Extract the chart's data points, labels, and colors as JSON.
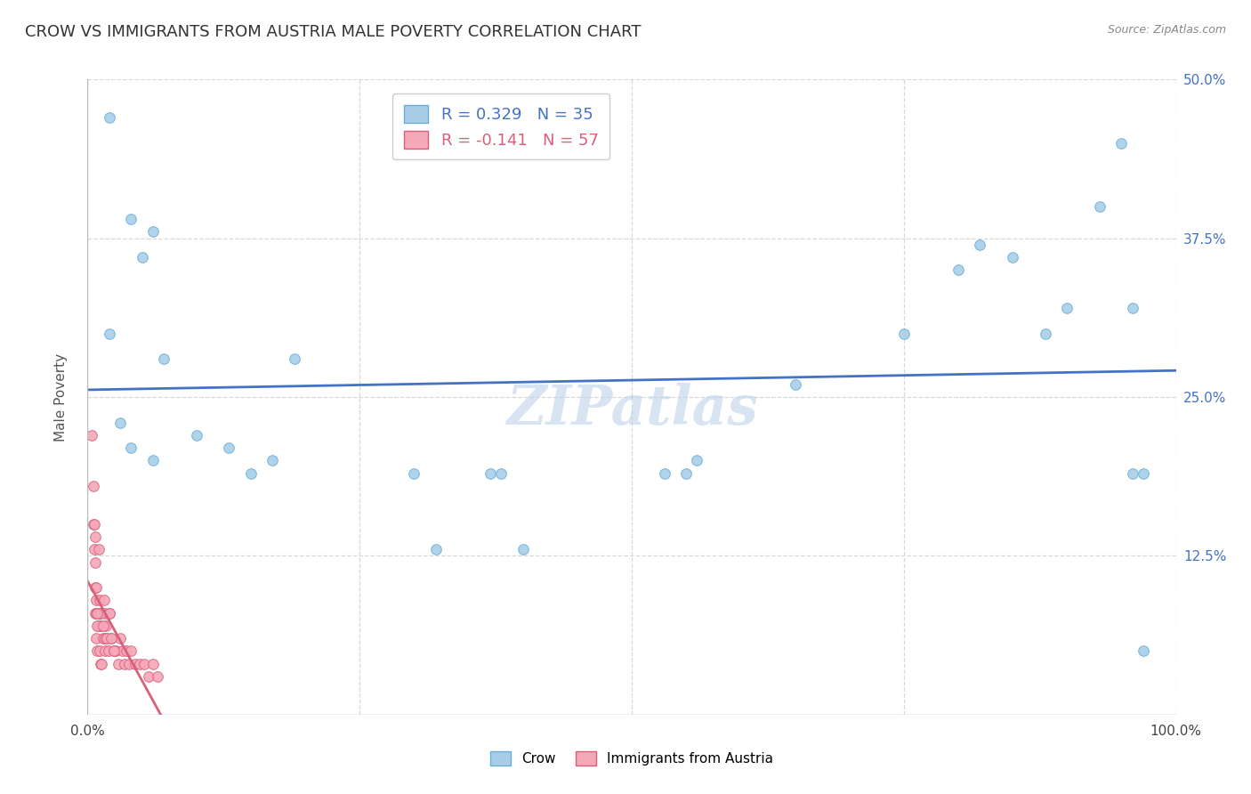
{
  "title": "CROW VS IMMIGRANTS FROM AUSTRIA MALE POVERTY CORRELATION CHART",
  "source": "Source: ZipAtlas.com",
  "ylabel": "Male Poverty",
  "xlim": [
    0,
    1.0
  ],
  "ylim": [
    0,
    0.5
  ],
  "yticks": [
    0.0,
    0.125,
    0.25,
    0.375,
    0.5
  ],
  "ytick_labels": [
    "",
    "12.5%",
    "25.0%",
    "37.5%",
    "50.0%"
  ],
  "xticks": [
    0.0,
    0.25,
    0.5,
    0.75,
    1.0
  ],
  "xtick_labels": [
    "0.0%",
    "",
    "",
    "",
    "100.0%"
  ],
  "background_color": "#ffffff",
  "crow_color": "#a8cde8",
  "crow_edge_color": "#6aaed6",
  "austria_color": "#f4a8b8",
  "austria_edge_color": "#d9607a",
  "crow_R": 0.329,
  "crow_N": 35,
  "austria_R": -0.141,
  "austria_N": 57,
  "crow_line_color": "#4472c4",
  "austria_line_color": "#d9607a",
  "crow_x": [
    0.02,
    0.04,
    0.05,
    0.06,
    0.02,
    0.03,
    0.04,
    0.06,
    0.07,
    0.1,
    0.13,
    0.15,
    0.17,
    0.19,
    0.37,
    0.38,
    0.4,
    0.53,
    0.65,
    0.75,
    0.8,
    0.82,
    0.85,
    0.88,
    0.9,
    0.93,
    0.95,
    0.96,
    0.96,
    0.97,
    0.3,
    0.32,
    0.55,
    0.56,
    0.97
  ],
  "crow_y": [
    0.47,
    0.39,
    0.36,
    0.38,
    0.3,
    0.23,
    0.21,
    0.2,
    0.28,
    0.22,
    0.21,
    0.19,
    0.2,
    0.28,
    0.19,
    0.19,
    0.13,
    0.19,
    0.26,
    0.3,
    0.35,
    0.37,
    0.36,
    0.3,
    0.32,
    0.4,
    0.45,
    0.32,
    0.19,
    0.19,
    0.19,
    0.13,
    0.19,
    0.2,
    0.05
  ],
  "austria_x": [
    0.004,
    0.005,
    0.006,
    0.007,
    0.007,
    0.008,
    0.008,
    0.009,
    0.009,
    0.01,
    0.01,
    0.011,
    0.011,
    0.012,
    0.012,
    0.013,
    0.013,
    0.014,
    0.015,
    0.016,
    0.016,
    0.017,
    0.018,
    0.019,
    0.02,
    0.022,
    0.024,
    0.026,
    0.028,
    0.03,
    0.032,
    0.034,
    0.036,
    0.038,
    0.04,
    0.044,
    0.048,
    0.052,
    0.056,
    0.06,
    0.064,
    0.007,
    0.008,
    0.009,
    0.01,
    0.012,
    0.014,
    0.016,
    0.018,
    0.02,
    0.022,
    0.024,
    0.005,
    0.006,
    0.007,
    0.008,
    0.009
  ],
  "austria_y": [
    0.22,
    0.15,
    0.13,
    0.1,
    0.08,
    0.09,
    0.06,
    0.08,
    0.05,
    0.13,
    0.07,
    0.09,
    0.05,
    0.08,
    0.04,
    0.07,
    0.04,
    0.06,
    0.09,
    0.08,
    0.05,
    0.07,
    0.06,
    0.05,
    0.08,
    0.06,
    0.05,
    0.05,
    0.04,
    0.06,
    0.05,
    0.04,
    0.05,
    0.04,
    0.05,
    0.04,
    0.04,
    0.04,
    0.03,
    0.04,
    0.03,
    0.14,
    0.08,
    0.07,
    0.08,
    0.08,
    0.07,
    0.06,
    0.06,
    0.08,
    0.06,
    0.05,
    0.18,
    0.15,
    0.12,
    0.1,
    0.08
  ],
  "grid_color": "#d8d8d8",
  "title_fontsize": 13,
  "label_fontsize": 11,
  "tick_fontsize": 11,
  "legend_fontsize": 13,
  "marker_size": 70
}
